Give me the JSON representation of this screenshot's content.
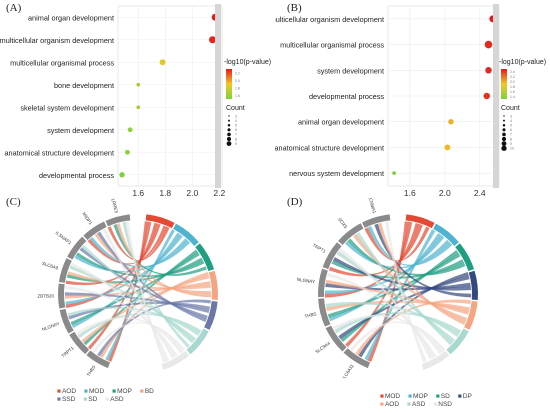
{
  "panels": {
    "A": "(A)",
    "B": "(B)",
    "C": "(C)",
    "D": "(D)"
  },
  "chart_data": [
    {
      "type": "scatter",
      "panel": "A",
      "categories": [
        "animal organ development",
        "multicellular organism development",
        "multicellular organismal process",
        "bone development",
        "skeletal system development",
        "system development",
        "anatomical structure development",
        "developmental process"
      ],
      "x": [
        2.17,
        2.15,
        1.78,
        1.6,
        1.6,
        1.54,
        1.52,
        1.48
      ],
      "count": [
        9,
        9,
        7,
        3,
        3,
        5,
        5,
        6
      ],
      "xlim": [
        1.45,
        2.22
      ],
      "xticks": [
        1.6,
        1.8,
        2.0,
        2.2
      ],
      "legend": {
        "color_title": "-log10(p-value)",
        "size_title": "Count",
        "color_ticks": [
          "2.2",
          "2.0",
          "1.8",
          "1.6"
        ],
        "size_ticks": [
          "3",
          "4",
          "5",
          "6",
          "7",
          "8",
          "9"
        ]
      },
      "grid": true
    },
    {
      "type": "scatter",
      "panel": "B",
      "categories": [
        "multicellular organism development",
        "multicellular organismal process",
        "system development",
        "developmental process",
        "animal organ development",
        "anatomical structure development",
        "nervous system development"
      ],
      "x": [
        2.55,
        2.5,
        2.5,
        2.48,
        2.07,
        2.03,
        1.42
      ],
      "count": [
        9,
        10,
        8,
        8,
        6,
        7,
        3
      ],
      "xlim": [
        1.35,
        2.62
      ],
      "xticks": [
        1.6,
        2.0,
        2.4
      ],
      "legend": {
        "color_title": "-log10(p-value)",
        "size_title": "Count",
        "color_ticks": [
          "2.4",
          "2.2",
          "2.0",
          "1.8",
          "1.6",
          "1.4"
        ],
        "size_ticks": [
          "3",
          "4",
          "5",
          "6",
          "7",
          "8",
          "9",
          "10"
        ]
      },
      "grid": true
    },
    {
      "type": "chord",
      "panel": "C",
      "genes": [
        "THBS",
        "TRPT1",
        "NLGNAY",
        "ZBTB20",
        "SLC6A6",
        "ILSNAP1",
        "MIDP1",
        "LRRE3"
      ],
      "legend_rows": [
        [
          "AOD",
          "MOD",
          "MOP",
          "BD"
        ],
        [
          "SSD",
          "SD",
          "ASD"
        ]
      ],
      "terms": [
        {
          "name": "AOD",
          "color": "#e34a33"
        },
        {
          "name": "MOD",
          "color": "#4fb3cf"
        },
        {
          "name": "MOP",
          "color": "#1f9e82"
        },
        {
          "name": "BD",
          "color": "#f4a582"
        },
        {
          "name": "SSD",
          "color": "#6a77a8"
        },
        {
          "name": "SD",
          "color": "#a8d8cf"
        },
        {
          "name": "ASD",
          "color": "#e8e8e8"
        }
      ]
    },
    {
      "type": "chord",
      "panel": "D",
      "genes": [
        "SLC6A11",
        "SLC9A4",
        "THBS",
        "NLGNAY",
        "TRPT1",
        "SOX5",
        "KCNMA1"
      ],
      "legend_rows": [
        [
          "MOD",
          "MOP",
          "SD",
          "DP"
        ],
        [
          "AOD",
          "ASD",
          "NSD"
        ]
      ],
      "terms": [
        {
          "name": "MOD",
          "color": "#e34a33"
        },
        {
          "name": "MOP",
          "color": "#4fb3cf"
        },
        {
          "name": "SD",
          "color": "#1f9e82"
        },
        {
          "name": "DP",
          "color": "#34497f"
        },
        {
          "name": "AOD",
          "color": "#f4a582"
        },
        {
          "name": "ASD",
          "color": "#a8d8cf"
        },
        {
          "name": "NSD",
          "color": "#e8e8e8"
        }
      ]
    }
  ]
}
